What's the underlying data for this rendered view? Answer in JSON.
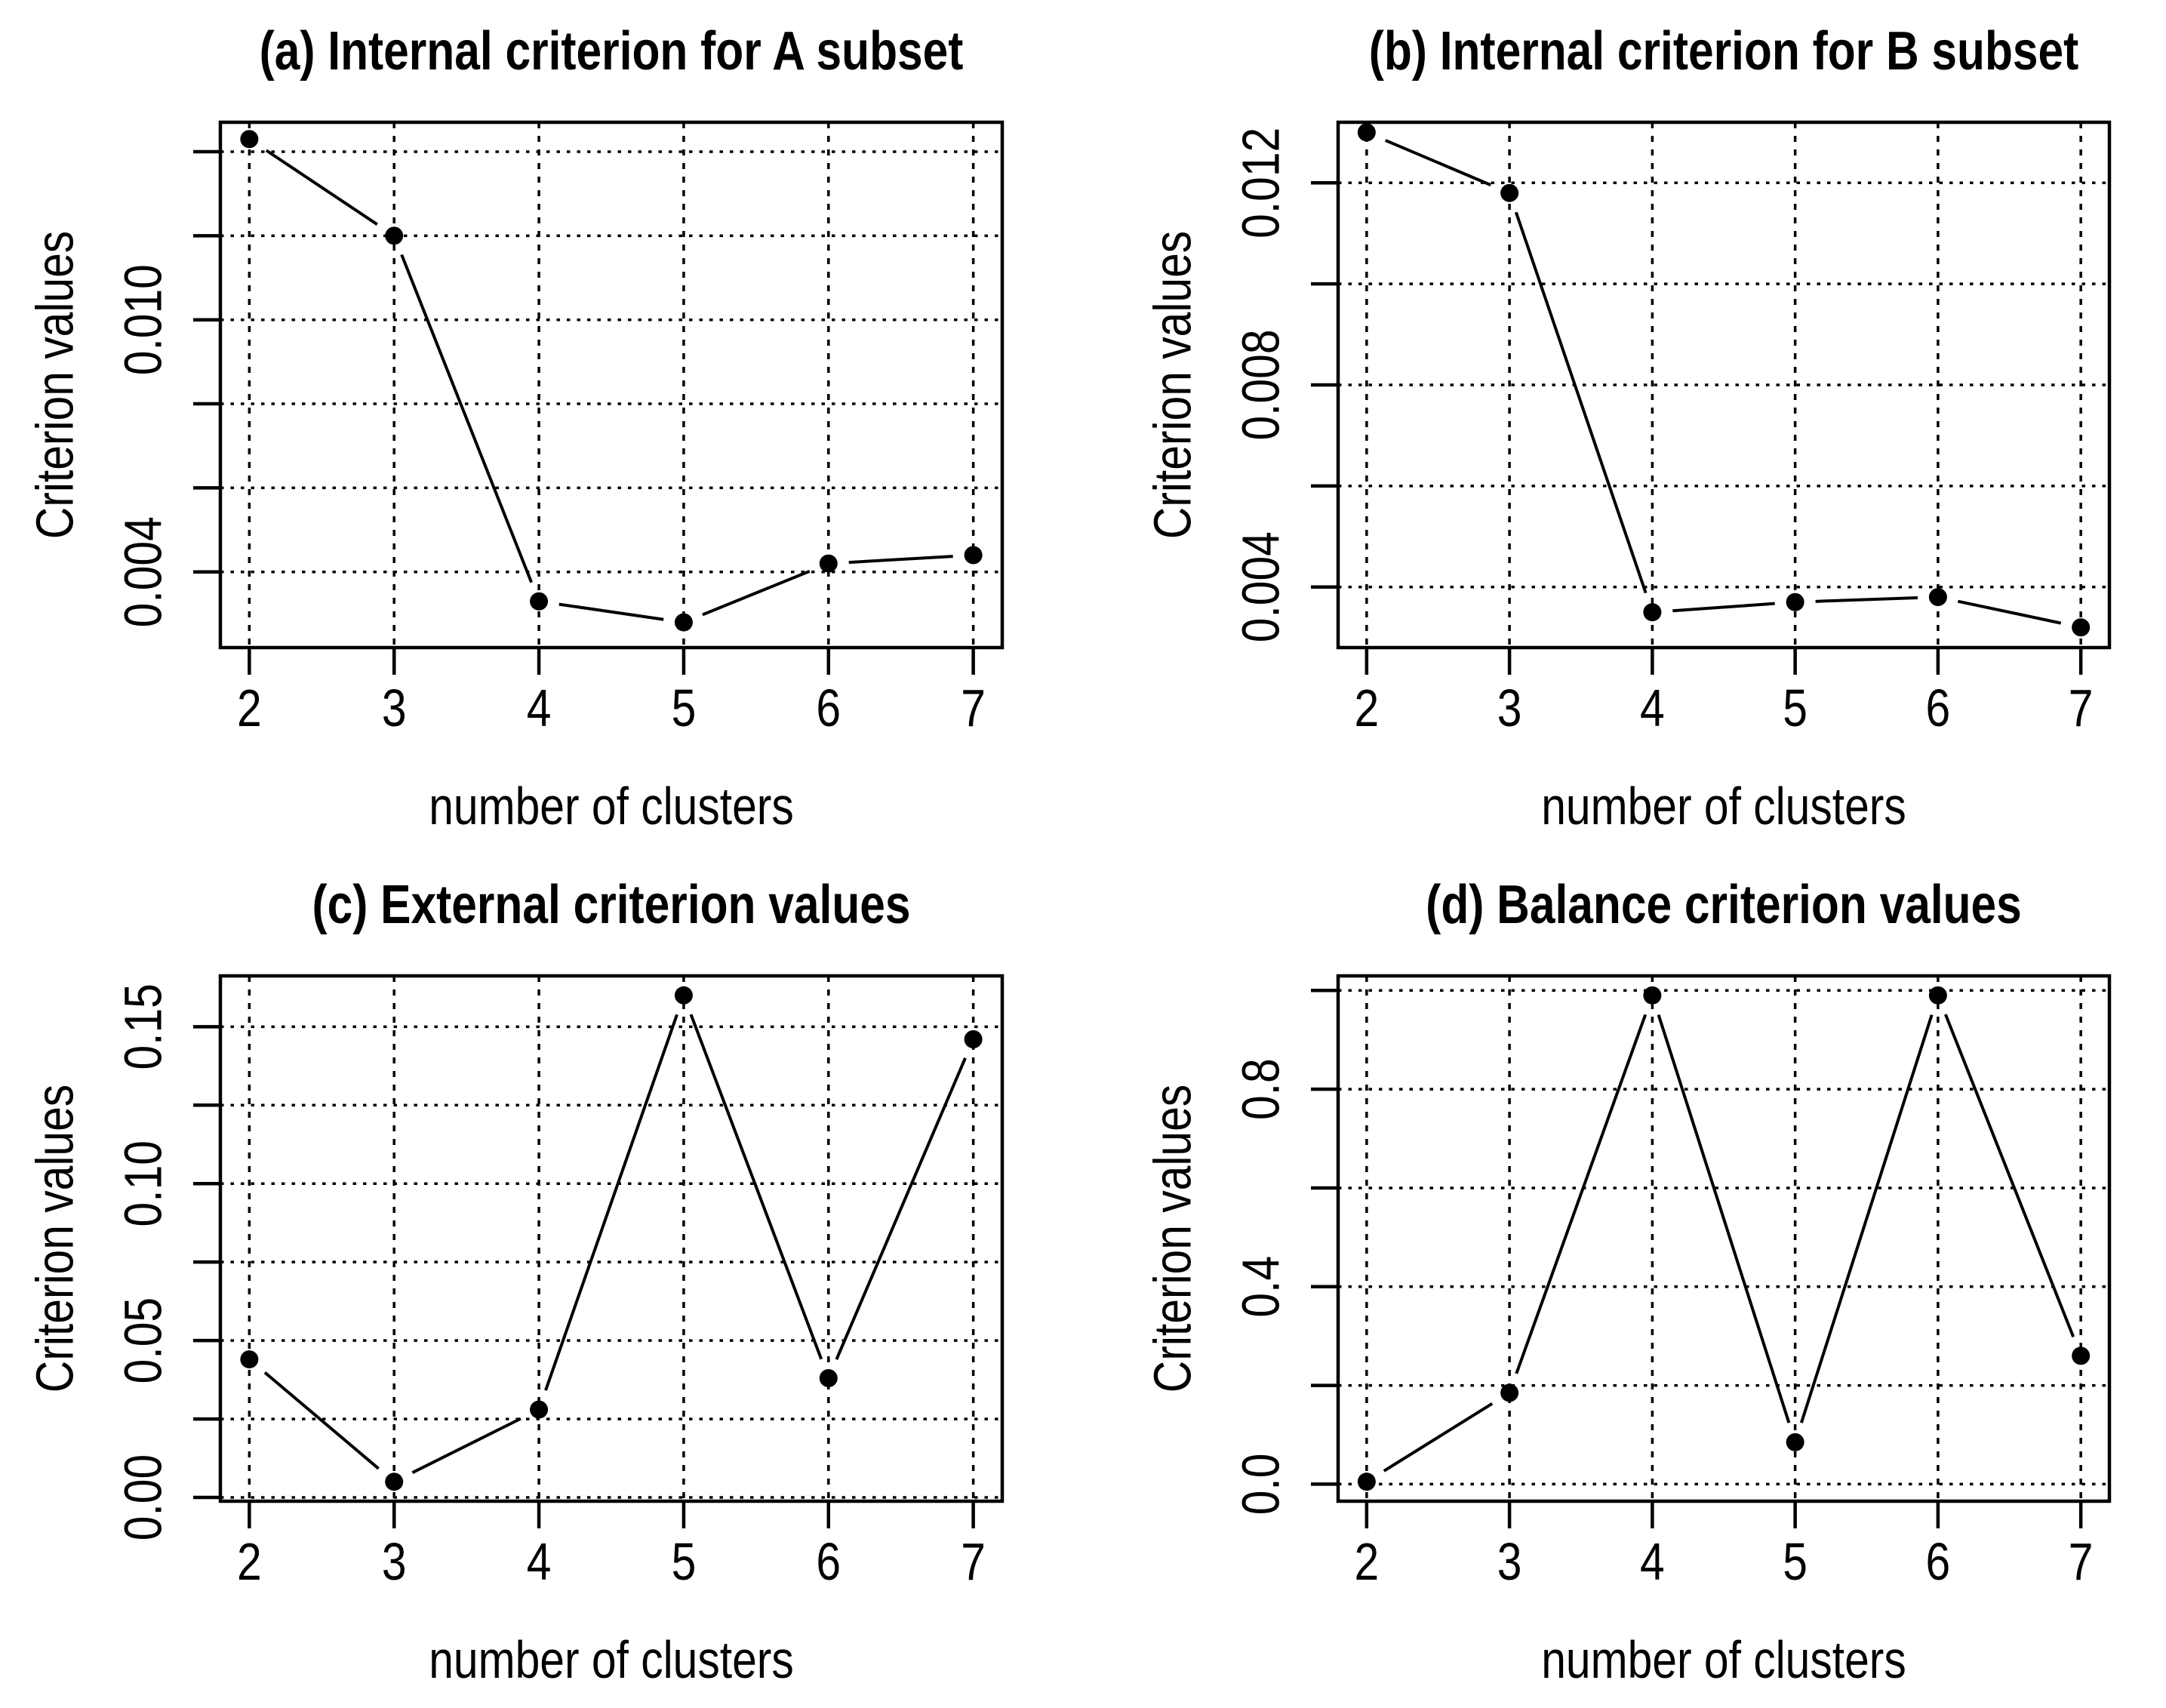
{
  "page": {
    "background": "#ffffff",
    "foreground": "#000000"
  },
  "chart_data": [
    {
      "id": "a",
      "type": "line",
      "title": "(a) Internal criterion for A subset",
      "xlabel": "number of clusters",
      "ylabel": "Criterion values",
      "x": [
        2,
        3,
        4,
        5,
        6,
        7
      ],
      "values": [
        0.0143,
        0.012,
        0.0033,
        0.0028,
        0.0042,
        0.0044
      ],
      "xlim": [
        1.8,
        7.2
      ],
      "ylim": [
        0.0022,
        0.0147
      ],
      "grid": true,
      "marker": "filled-circle",
      "xticks": [
        {
          "v": 2,
          "label": "2"
        },
        {
          "v": 3,
          "label": "3"
        },
        {
          "v": 4,
          "label": "4"
        },
        {
          "v": 5,
          "label": "5"
        },
        {
          "v": 6,
          "label": "6"
        },
        {
          "v": 7,
          "label": "7"
        }
      ],
      "yticks": [
        {
          "v": 0.004,
          "label": "0.004"
        },
        {
          "v": 0.006,
          "label": ""
        },
        {
          "v": 0.008,
          "label": ""
        },
        {
          "v": 0.01,
          "label": "0.010"
        },
        {
          "v": 0.012,
          "label": ""
        },
        {
          "v": 0.014,
          "label": ""
        }
      ]
    },
    {
      "id": "b",
      "type": "line",
      "title": "(b) Internal criterion for B subset",
      "xlabel": "number of clusters",
      "ylabel": "Criterion values",
      "x": [
        2,
        3,
        4,
        5,
        6,
        7
      ],
      "values": [
        0.013,
        0.0118,
        0.0035,
        0.0037,
        0.0038,
        0.0032
      ],
      "xlim": [
        1.8,
        7.2
      ],
      "ylim": [
        0.0028,
        0.0132
      ],
      "grid": true,
      "marker": "filled-circle",
      "xticks": [
        {
          "v": 2,
          "label": "2"
        },
        {
          "v": 3,
          "label": "3"
        },
        {
          "v": 4,
          "label": "4"
        },
        {
          "v": 5,
          "label": "5"
        },
        {
          "v": 6,
          "label": "6"
        },
        {
          "v": 7,
          "label": "7"
        }
      ],
      "yticks": [
        {
          "v": 0.004,
          "label": "0.004"
        },
        {
          "v": 0.006,
          "label": ""
        },
        {
          "v": 0.008,
          "label": "0.008"
        },
        {
          "v": 0.01,
          "label": ""
        },
        {
          "v": 0.012,
          "label": "0.012"
        }
      ]
    },
    {
      "id": "c",
      "type": "line",
      "title": "(c) External criterion values",
      "xlabel": "number of clusters",
      "ylabel": "Criterion values",
      "x": [
        2,
        3,
        4,
        5,
        6,
        7
      ],
      "values": [
        0.044,
        0.005,
        0.028,
        0.16,
        0.038,
        0.146
      ],
      "xlim": [
        1.8,
        7.2
      ],
      "ylim": [
        -0.0012,
        0.1662
      ],
      "grid": true,
      "marker": "filled-circle",
      "xticks": [
        {
          "v": 2,
          "label": "2"
        },
        {
          "v": 3,
          "label": "3"
        },
        {
          "v": 4,
          "label": "4"
        },
        {
          "v": 5,
          "label": "5"
        },
        {
          "v": 6,
          "label": "6"
        },
        {
          "v": 7,
          "label": "7"
        }
      ],
      "yticks": [
        {
          "v": 0.0,
          "label": "0.00"
        },
        {
          "v": 0.025,
          "label": ""
        },
        {
          "v": 0.05,
          "label": "0.05"
        },
        {
          "v": 0.075,
          "label": ""
        },
        {
          "v": 0.1,
          "label": "0.10"
        },
        {
          "v": 0.125,
          "label": ""
        },
        {
          "v": 0.15,
          "label": "0.15"
        }
      ]
    },
    {
      "id": "d",
      "type": "line",
      "title": "(d) Balance criterion values",
      "xlabel": "number of clusters",
      "ylabel": "Criterion values",
      "x": [
        2,
        3,
        4,
        5,
        6,
        7
      ],
      "values": [
        0.005,
        0.185,
        0.99,
        0.085,
        0.99,
        0.26
      ],
      "xlim": [
        1.8,
        7.2
      ],
      "ylim": [
        -0.0345,
        1.0295
      ],
      "grid": true,
      "marker": "filled-circle",
      "xticks": [
        {
          "v": 2,
          "label": "2"
        },
        {
          "v": 3,
          "label": "3"
        },
        {
          "v": 4,
          "label": "4"
        },
        {
          "v": 5,
          "label": "5"
        },
        {
          "v": 6,
          "label": "6"
        },
        {
          "v": 7,
          "label": "7"
        }
      ],
      "yticks": [
        {
          "v": 0.0,
          "label": "0.0"
        },
        {
          "v": 0.2,
          "label": ""
        },
        {
          "v": 0.4,
          "label": "0.4"
        },
        {
          "v": 0.6,
          "label": ""
        },
        {
          "v": 0.8,
          "label": "0.8"
        },
        {
          "v": 1.0,
          "label": ""
        }
      ]
    }
  ]
}
